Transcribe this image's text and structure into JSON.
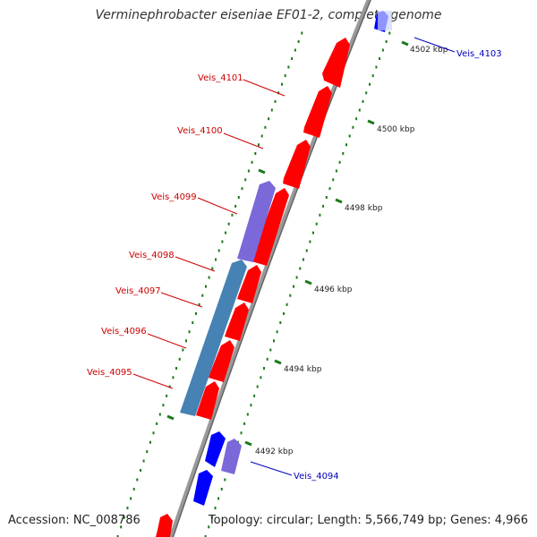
{
  "title": "Verminephrobacter eiseniae EF01-2, complete genome",
  "accession": "Accession: NC_008786",
  "summary": "Topology: circular; Length: 5,566,749 bp; Genes: 4,966",
  "colors": {
    "forward_cds": "#ff0000",
    "reverse_cds_blue": "#0000ff",
    "reverse_cds_purple": "#7b68d9",
    "reverse_cds_steel": "#4682b4",
    "backbone": "#999999",
    "tick": "#1a7a1a",
    "label_red": "#cc0000",
    "label_blue": "#0000bb"
  },
  "scale_labels": [
    "4502 kbp",
    "4500 kbp",
    "4498 kbp",
    "4496 kbp",
    "4494 kbp",
    "4492 kbp"
  ],
  "gene_labels": [
    "Veis_4103",
    "Veis_4101",
    "Veis_4100",
    "Veis_4099",
    "Veis_4098",
    "Veis_4097",
    "Veis_4096",
    "Veis_4095",
    "Veis_4094"
  ]
}
